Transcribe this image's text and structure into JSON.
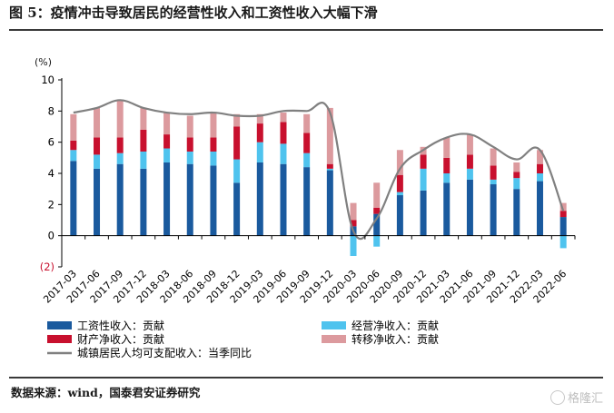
{
  "figure": {
    "title": "图 5：疫情冲击导致居民的经营性收入和工资性收入大幅下滑",
    "source": "数据来源：wind，国泰君安证券研究",
    "watermark": "格隆汇"
  },
  "chart_data": {
    "type": "bar",
    "stacked": true,
    "unit": "(%)",
    "ylim": [
      -2,
      10
    ],
    "yticks": [
      -2,
      0,
      2,
      4,
      6,
      8,
      10
    ],
    "ytick_labels": [
      "(2)",
      "0",
      "2",
      "4",
      "6",
      "8",
      "10"
    ],
    "grid": false,
    "legend_position": "bottom",
    "categories": [
      "2017-03",
      "2017-06",
      "2017-09",
      "2017-12",
      "2018-03",
      "2018-06",
      "2018-09",
      "2018-12",
      "2019-03",
      "2019-06",
      "2019-09",
      "2019-12",
      "2020-03",
      "2020-06",
      "2020-09",
      "2020-12",
      "2021-03",
      "2021-06",
      "2021-09",
      "2021-12",
      "2022-03",
      "2022-06"
    ],
    "series": [
      {
        "name": "工资性收入：贡献",
        "kind": "bar",
        "color": "#1a5a9e",
        "values": [
          4.8,
          4.3,
          4.6,
          4.3,
          4.7,
          4.6,
          4.5,
          3.4,
          4.7,
          4.6,
          4.4,
          4.2,
          0.6,
          1.4,
          2.6,
          2.9,
          3.4,
          3.6,
          3.3,
          3.0,
          3.5,
          1.2
        ]
      },
      {
        "name": "经营净收入：贡献",
        "kind": "bar",
        "color": "#4fc3ee",
        "values": [
          0.7,
          0.9,
          0.7,
          1.1,
          0.9,
          0.8,
          0.9,
          1.5,
          1.3,
          1.3,
          0.9,
          0.1,
          -1.3,
          -0.7,
          0.2,
          1.4,
          0.6,
          0.7,
          0.3,
          0.7,
          0.5,
          -0.8
        ]
      },
      {
        "name": "财产净收入：贡献",
        "kind": "bar",
        "color": "#c8102e",
        "values": [
          0.6,
          1.1,
          1.0,
          1.4,
          0.9,
          0.9,
          0.9,
          2.1,
          1.2,
          1.4,
          1.3,
          0.3,
          0.4,
          0.4,
          1.1,
          0.9,
          1.0,
          0.9,
          0.9,
          0.4,
          0.6,
          0.4
        ]
      },
      {
        "name": "转移净收入：贡献",
        "kind": "bar",
        "color": "#dc9a9e",
        "values": [
          1.7,
          1.9,
          2.4,
          1.4,
          1.4,
          1.4,
          1.6,
          0.8,
          0.6,
          0.6,
          1.2,
          3.6,
          1.1,
          1.6,
          1.6,
          0.5,
          1.3,
          1.3,
          1.1,
          0.6,
          0.9,
          0.5
        ]
      },
      {
        "name": "城镇居民人均可支配收入：当季同比",
        "kind": "line",
        "color": "#808080",
        "values": [
          7.9,
          8.2,
          8.7,
          8.2,
          7.9,
          7.8,
          7.9,
          7.7,
          7.7,
          8.0,
          8.0,
          7.9,
          0.3,
          1.1,
          4.3,
          5.5,
          6.3,
          6.5,
          5.7,
          4.9,
          5.5,
          1.6
        ]
      }
    ]
  }
}
